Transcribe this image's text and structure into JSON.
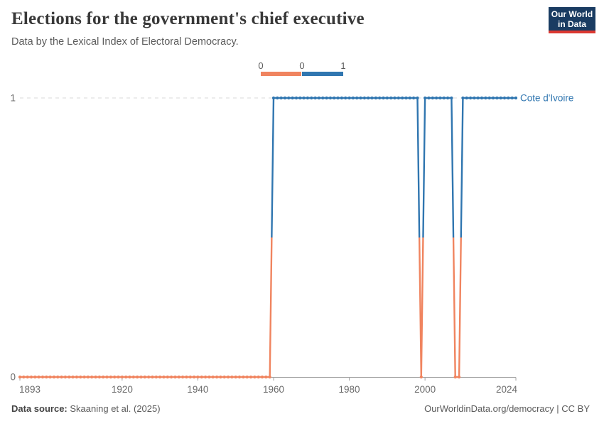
{
  "header": {
    "title": "Elections for the government's chief executive",
    "subtitle": "Data by the Lexical Index of Electoral Democracy.",
    "logo_line1": "Our World",
    "logo_line2": "in Data"
  },
  "legend": {
    "labels": [
      "0",
      "0",
      "1"
    ],
    "bins": [
      {
        "value": "0",
        "color": "#F0845F"
      },
      {
        "value": "1",
        "color": "#3076B0"
      }
    ]
  },
  "chart_data": {
    "type": "line",
    "title": "Elections for the government's chief executive",
    "subtitle": "Data by the Lexical Index of Electoral Democracy.",
    "entity": "Cote d'Ivoire",
    "xlim": [
      1893,
      2024
    ],
    "ylim": [
      0,
      1
    ],
    "x_ticks": [
      1893,
      1920,
      1940,
      1960,
      1980,
      2000,
      2024
    ],
    "y_ticks": [
      0,
      1
    ],
    "grid": "dashed horizontal line at y=1, solid baseline at y=0",
    "legend_position": "top-center",
    "series": [
      {
        "name": "Cote d'Ivoire",
        "segments": [
          {
            "from": 1893,
            "to": 1959,
            "value": 0
          },
          {
            "from": 1960,
            "to": 1998,
            "value": 1
          },
          {
            "from": 1999,
            "to": 1999,
            "value": 0
          },
          {
            "from": 2000,
            "to": 2007,
            "value": 1
          },
          {
            "from": 2008,
            "to": 2009,
            "value": 0
          },
          {
            "from": 2010,
            "to": 2024,
            "value": 1
          }
        ]
      }
    ],
    "value_colors": {
      "0": "#F0845F",
      "1": "#3076B0"
    },
    "entity_label_color": "#3076B0",
    "marker": "circle, one per year"
  },
  "footer": {
    "source_label": "Data source:",
    "source_value": "Skaaning et al. (2025)",
    "link": "OurWorldinData.org/democracy",
    "license": "| CC BY"
  }
}
